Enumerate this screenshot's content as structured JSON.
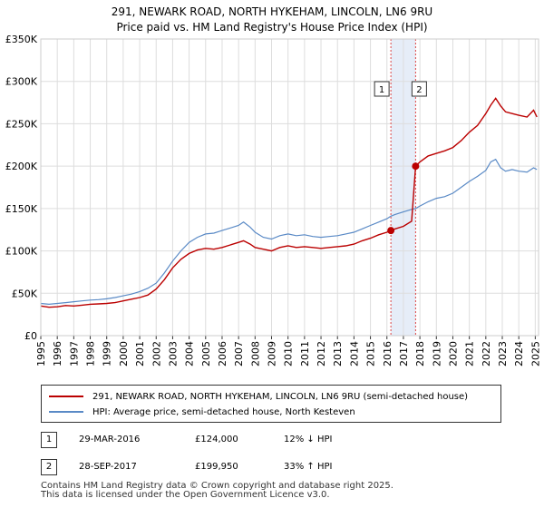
{
  "title_line1": "291, NEWARK ROAD, NORTH HYKEHAM, LINCOLN, LN6 9RU",
  "title_line2": "Price paid vs. HM Land Registry's House Price Index (HPI)",
  "colors": {
    "red": "#bb0000",
    "blue": "#5a8ac6",
    "grid": "#dddddd",
    "shade": "#dce6f5"
  },
  "chart_data": {
    "type": "line",
    "title": "291, NEWARK ROAD, NORTH HYKEHAM, LINCOLN, LN6 9RU - Price paid vs. HM Land Registry's House Price Index (HPI)",
    "xlim": [
      1995,
      2025.2
    ],
    "ylim": [
      0,
      350000
    ],
    "y_ticks": [
      0,
      50000,
      100000,
      150000,
      200000,
      250000,
      300000,
      350000
    ],
    "y_tick_labels": [
      "£0",
      "£50K",
      "£100K",
      "£150K",
      "£200K",
      "£250K",
      "£300K",
      "£350K"
    ],
    "x_ticks": [
      1995,
      1996,
      1997,
      1998,
      1999,
      2000,
      2001,
      2002,
      2003,
      2004,
      2005,
      2006,
      2007,
      2008,
      2009,
      2010,
      2011,
      2012,
      2013,
      2014,
      2015,
      2016,
      2017,
      2018,
      2019,
      2020,
      2021,
      2022,
      2023,
      2024,
      2025
    ],
    "series": [
      {
        "name": "291, NEWARK ROAD, NORTH HYKEHAM, LINCOLN, LN6 9RU (semi-detached house)",
        "color": "#bb0000",
        "x": [
          1995,
          1995.5,
          1996,
          1996.5,
          1997,
          1997.5,
          1998,
          1998.5,
          1999,
          1999.5,
          2000,
          2000.5,
          2001,
          2001.5,
          2002,
          2002.5,
          2003,
          2003.5,
          2004,
          2004.5,
          2005,
          2005.5,
          2006,
          2006.5,
          2007,
          2007.3,
          2007.7,
          2008,
          2008.5,
          2009,
          2009.5,
          2010,
          2010.5,
          2011,
          2011.5,
          2012,
          2012.5,
          2013,
          2013.5,
          2014,
          2014.5,
          2015,
          2015.5,
          2016,
          2016.24,
          2016.5,
          2017,
          2017.5,
          2017.74,
          2018,
          2018.5,
          2019,
          2019.5,
          2020,
          2020.5,
          2021,
          2021.5,
          2022,
          2022.3,
          2022.6,
          2022.9,
          2023.2,
          2023.6,
          2024,
          2024.5,
          2024.9,
          2025.1
        ],
        "values": [
          35000,
          33500,
          34000,
          35500,
          35000,
          36000,
          37000,
          37500,
          38000,
          39000,
          41000,
          43000,
          45000,
          48000,
          55000,
          66000,
          80000,
          90000,
          97000,
          101000,
          103000,
          102000,
          104000,
          107000,
          110000,
          112000,
          108000,
          104000,
          102000,
          100000,
          104000,
          106000,
          104000,
          105000,
          104000,
          103000,
          104000,
          105000,
          106000,
          108000,
          112000,
          115000,
          119000,
          122000,
          124000,
          126000,
          129000,
          135000,
          199950,
          205000,
          212000,
          215000,
          218000,
          222000,
          230000,
          240000,
          248000,
          262000,
          272000,
          280000,
          271000,
          264000,
          262000,
          260000,
          258000,
          266000,
          258000
        ]
      },
      {
        "name": "HPI: Average price, semi-detached house, North Kesteven",
        "color": "#5a8ac6",
        "x": [
          1995,
          1995.5,
          1996,
          1996.5,
          1997,
          1997.5,
          1998,
          1998.5,
          1999,
          1999.5,
          2000,
          2000.5,
          2001,
          2001.5,
          2002,
          2002.5,
          2003,
          2003.5,
          2004,
          2004.5,
          2005,
          2005.5,
          2006,
          2006.5,
          2007,
          2007.3,
          2007.7,
          2008,
          2008.5,
          2009,
          2009.5,
          2010,
          2010.5,
          2011,
          2011.5,
          2012,
          2012.5,
          2013,
          2013.5,
          2014,
          2014.5,
          2015,
          2015.5,
          2016,
          2016.24,
          2016.5,
          2017,
          2017.5,
          2017.74,
          2018,
          2018.5,
          2019,
          2019.5,
          2020,
          2020.5,
          2021,
          2021.5,
          2022,
          2022.3,
          2022.6,
          2022.9,
          2023.2,
          2023.6,
          2024,
          2024.5,
          2024.9,
          2025.1
        ],
        "values": [
          38000,
          37000,
          38000,
          39000,
          40000,
          41000,
          42000,
          42500,
          43500,
          45000,
          47000,
          49000,
          52000,
          56000,
          62000,
          74000,
          88000,
          100000,
          110000,
          116000,
          120000,
          121000,
          124000,
          127000,
          130000,
          134000,
          128000,
          122000,
          116000,
          114000,
          118000,
          120000,
          118000,
          119000,
          117000,
          116000,
          117000,
          118000,
          120000,
          122000,
          126000,
          130000,
          134000,
          138000,
          141000,
          143000,
          146000,
          149000,
          150000,
          153000,
          158000,
          162000,
          164000,
          168000,
          175000,
          182000,
          188000,
          195000,
          205000,
          208000,
          198000,
          194000,
          196000,
          194000,
          193000,
          198000,
          196000
        ]
      }
    ],
    "annotations": [
      {
        "label": "1",
        "x": 2016.24,
        "y": 124000
      },
      {
        "label": "2",
        "x": 2017.74,
        "y": 199950
      }
    ],
    "shaded_range": [
      2016.24,
      2017.74
    ]
  },
  "legend": {
    "red_label": "291, NEWARK ROAD, NORTH HYKEHAM, LINCOLN, LN6 9RU (semi-detached house)",
    "blue_label": "HPI: Average price, semi-detached house, North Kesteven"
  },
  "sales": [
    {
      "num": "1",
      "date": "29-MAR-2016",
      "price": "£124,000",
      "hpi": "12% ↓ HPI"
    },
    {
      "num": "2",
      "date": "28-SEP-2017",
      "price": "£199,950",
      "hpi": "33% ↑ HPI"
    }
  ],
  "footer_line1": "Contains HM Land Registry data © Crown copyright and database right 2025.",
  "footer_line2": "This data is licensed under the Open Government Licence v3.0."
}
